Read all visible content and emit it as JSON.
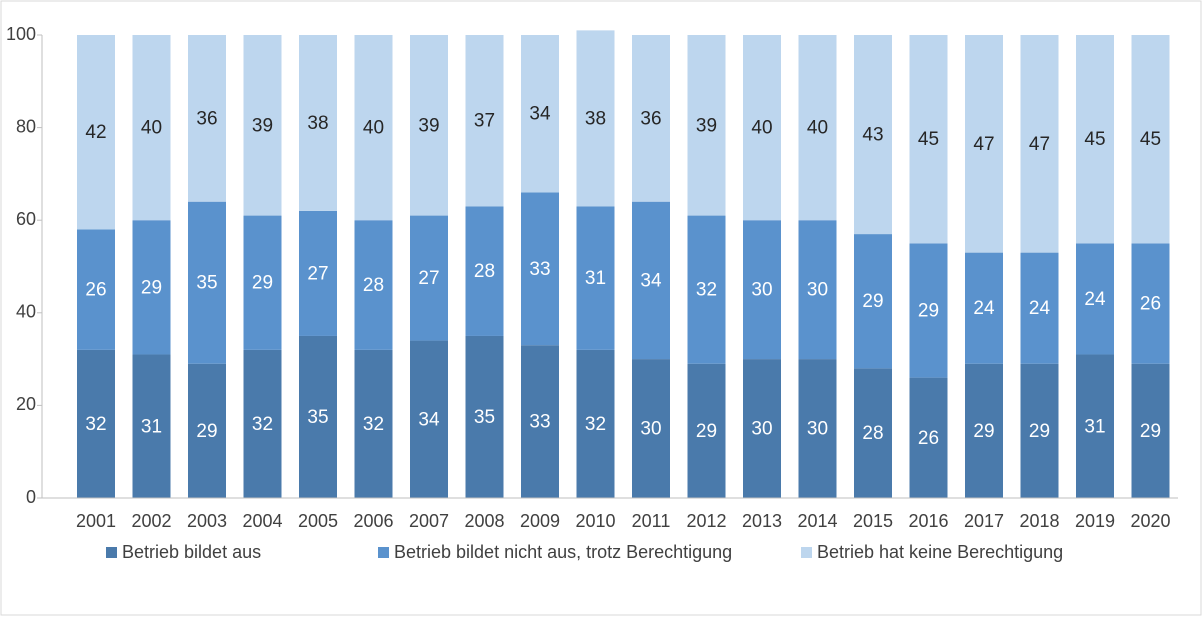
{
  "chart_data": {
    "type": "stacked_bar",
    "categories": [
      "2001",
      "2002",
      "2003",
      "2004",
      "2005",
      "2006",
      "2007",
      "2008",
      "2009",
      "2010",
      "2011",
      "2012",
      "2013",
      "2014",
      "2015",
      "2016",
      "2017",
      "2018",
      "2019",
      "2020"
    ],
    "series": [
      {
        "name": "Betrieb bildet aus",
        "color": "#4a7aab",
        "values": [
          32,
          31,
          29,
          32,
          35,
          32,
          34,
          35,
          33,
          32,
          30,
          29,
          30,
          30,
          28,
          26,
          29,
          29,
          31,
          29
        ]
      },
      {
        "name": "Betrieb bildet nicht aus, trotz Berechtigung",
        "color": "#5a92cd",
        "values": [
          26,
          29,
          35,
          29,
          27,
          28,
          27,
          28,
          33,
          31,
          34,
          32,
          30,
          30,
          29,
          29,
          24,
          24,
          24,
          26
        ]
      },
      {
        "name": "Betrieb hat keine Berechtigung",
        "color": "#bdd6ee",
        "values": [
          42,
          40,
          36,
          39,
          38,
          40,
          39,
          37,
          34,
          38,
          36,
          39,
          40,
          40,
          43,
          45,
          47,
          47,
          45,
          45
        ]
      }
    ],
    "ylim": [
      0,
      100
    ],
    "yticks": [
      0,
      20,
      40,
      60,
      80,
      100
    ],
    "grid": false,
    "legend": "bottom"
  }
}
